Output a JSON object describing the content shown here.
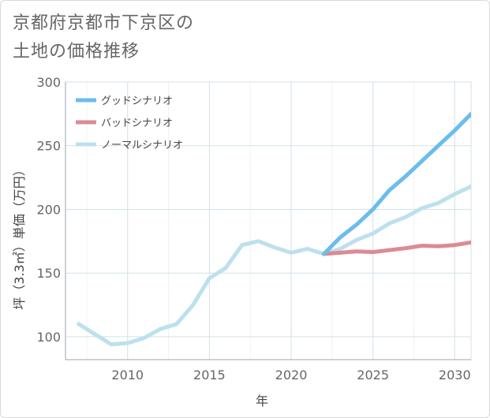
{
  "title": {
    "line1": "京都府京都市下京区の",
    "line2": "土地の価格推移"
  },
  "chart_data": {
    "type": "line",
    "xlabel": "年",
    "ylabel": "坪（3.3㎡）単価（万円）",
    "xlim": [
      2006.2,
      2031
    ],
    "ylim": [
      82,
      300
    ],
    "xticks": [
      2010,
      2015,
      2020,
      2025,
      2030
    ],
    "yticks": [
      100,
      150,
      200,
      250,
      300
    ],
    "grid": true,
    "legend_position": "top-left",
    "series": [
      {
        "name": "グッドシナリオ",
        "color": "#6cbcec",
        "x": [
          2022,
          2023,
          2024,
          2025,
          2026,
          2027,
          2028,
          2029,
          2030,
          2031
        ],
        "values": [
          165,
          178,
          188,
          200,
          215,
          226,
          238,
          250,
          262,
          275
        ]
      },
      {
        "name": "バッドシナリオ",
        "color": "#dc8a94",
        "x": [
          2022,
          2023,
          2024,
          2025,
          2026,
          2027,
          2028,
          2029,
          2030,
          2031
        ],
        "values": [
          165,
          166,
          167,
          166.5,
          168,
          169.5,
          171.5,
          171,
          172,
          174
        ]
      },
      {
        "name": "ノーマルシナリオ",
        "color": "#bde0ee",
        "x": [
          2007,
          2008,
          2009,
          2010,
          2011,
          2012,
          2013,
          2014,
          2015,
          2016,
          2017,
          2018,
          2019,
          2020,
          2021,
          2022,
          2023,
          2024,
          2025,
          2026,
          2027,
          2028,
          2029,
          2030,
          2031
        ],
        "values": [
          110,
          102,
          94,
          95,
          99,
          106,
          110,
          125,
          146,
          154,
          172,
          175,
          170,
          166,
          169,
          165,
          169,
          176,
          181,
          189,
          194,
          201,
          205,
          212,
          218
        ]
      }
    ]
  }
}
